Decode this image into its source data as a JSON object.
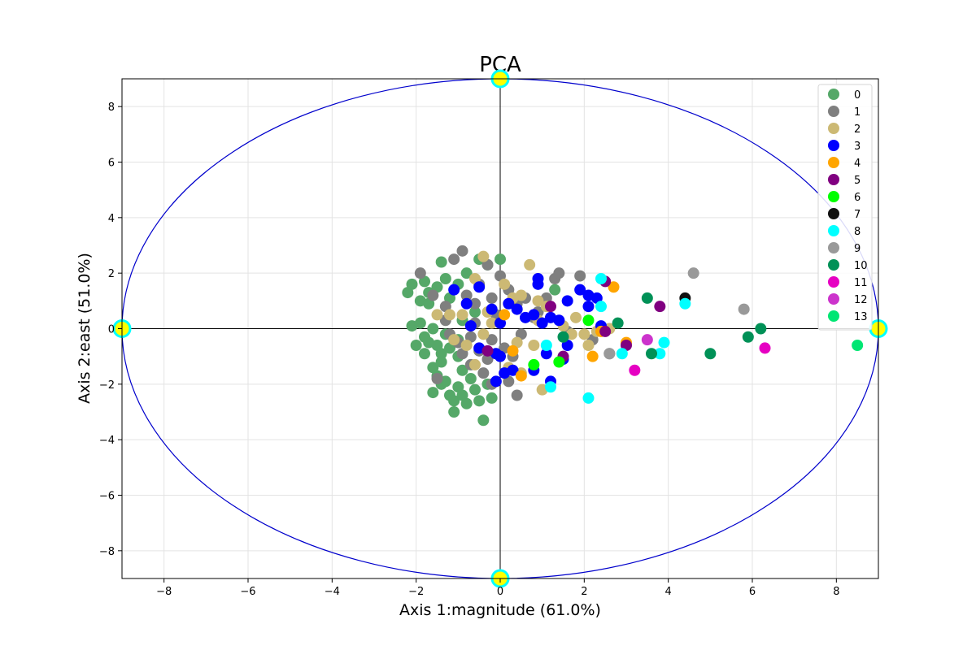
{
  "chart_data": {
    "type": "scatter",
    "title": "PCA",
    "xlabel": "Axis 1:magnitude (61.0%)",
    "ylabel": "Axis 2:east (51.0%)",
    "xlim": [
      -9,
      9
    ],
    "ylim": [
      -9,
      9
    ],
    "x_ticks": [
      -8,
      -6,
      -4,
      -2,
      0,
      2,
      4,
      6,
      8
    ],
    "y_ticks": [
      -8,
      -6,
      -4,
      -2,
      0,
      2,
      4,
      6,
      8
    ],
    "x_tick_labels": [
      "−8",
      "−6",
      "−4",
      "−2",
      "0",
      "2",
      "4",
      "6",
      "8"
    ],
    "y_tick_labels": [
      "−8",
      "−6",
      "−4",
      "−2",
      "0",
      "2",
      "4",
      "6",
      "8"
    ],
    "grid": true,
    "legend_position": "top-right",
    "reference_ellipse": {
      "center": [
        0,
        0
      ],
      "rx": 9,
      "ry": 9,
      "color": "#0000cc"
    },
    "ellipse_markers": {
      "points": [
        [
          0,
          9
        ],
        [
          0,
          -9
        ],
        [
          -9,
          0
        ],
        [
          9,
          0
        ]
      ],
      "fill": "#ffff00",
      "edge": "#00ffff"
    },
    "axis_lines_color": "#000000",
    "series": [
      {
        "name": "0",
        "color": "#55a868",
        "points": [
          [
            -2.2,
            1.3
          ],
          [
            -2.1,
            1.6
          ],
          [
            -1.9,
            1.0
          ],
          [
            -1.8,
            1.7
          ],
          [
            -1.7,
            1.3
          ],
          [
            -1.5,
            1.5
          ],
          [
            -1.4,
            2.4
          ],
          [
            -1.3,
            1.8
          ],
          [
            -1.2,
            1.1
          ],
          [
            -1.0,
            1.6
          ],
          [
            -0.8,
            2.0
          ],
          [
            -2.1,
            0.1
          ],
          [
            -1.9,
            0.2
          ],
          [
            -1.8,
            -0.3
          ],
          [
            -1.7,
            -0.5
          ],
          [
            -1.6,
            0.0
          ],
          [
            -1.5,
            -0.6
          ],
          [
            -1.4,
            -0.9
          ],
          [
            -1.3,
            -0.2
          ],
          [
            -1.2,
            -0.7
          ],
          [
            -2.0,
            -0.6
          ],
          [
            -1.8,
            -0.9
          ],
          [
            -1.6,
            -1.4
          ],
          [
            -1.5,
            -1.7
          ],
          [
            -1.4,
            -1.2
          ],
          [
            -1.3,
            -1.9
          ],
          [
            -1.2,
            -2.4
          ],
          [
            -1.1,
            -2.6
          ],
          [
            -1.0,
            -2.1
          ],
          [
            -0.9,
            -2.4
          ],
          [
            -0.8,
            -2.7
          ],
          [
            -1.1,
            -3.0
          ],
          [
            -0.9,
            -1.5
          ],
          [
            -0.7,
            -1.8
          ],
          [
            -0.6,
            -2.2
          ],
          [
            -0.5,
            -2.6
          ],
          [
            -0.4,
            -3.3
          ],
          [
            -0.3,
            -2.0
          ],
          [
            -1.6,
            -2.3
          ],
          [
            -1.0,
            -1.0
          ],
          [
            -0.9,
            0.3
          ],
          [
            -0.6,
            0.6
          ],
          [
            -0.5,
            2.5
          ],
          [
            -0.3,
            2.3
          ],
          [
            0.0,
            2.5
          ],
          [
            1.3,
            1.4
          ],
          [
            -1.7,
            0.9
          ],
          [
            -1.0,
            -0.4
          ],
          [
            -0.2,
            -2.5
          ],
          [
            -1.4,
            -2.0
          ]
        ]
      },
      {
        "name": "1",
        "color": "#7f7f7f",
        "points": [
          [
            -1.9,
            2.0
          ],
          [
            -1.6,
            1.2
          ],
          [
            -1.3,
            0.8
          ],
          [
            -1.1,
            2.5
          ],
          [
            -0.9,
            2.8
          ],
          [
            -0.8,
            1.2
          ],
          [
            -0.6,
            0.9
          ],
          [
            -0.5,
            1.6
          ],
          [
            -0.3,
            2.3
          ],
          [
            -0.2,
            1.1
          ],
          [
            0.0,
            1.9
          ],
          [
            0.2,
            1.4
          ],
          [
            0.4,
            0.9
          ],
          [
            -1.2,
            -0.2
          ],
          [
            -1.0,
            -0.5
          ],
          [
            -0.7,
            -0.3
          ],
          [
            -0.5,
            -0.8
          ],
          [
            -0.3,
            -1.1
          ],
          [
            -0.2,
            -0.4
          ],
          [
            0.1,
            -0.7
          ],
          [
            0.3,
            -1.0
          ],
          [
            0.5,
            -0.2
          ],
          [
            0.8,
            0.4
          ],
          [
            1.1,
            1.1
          ],
          [
            1.3,
            1.8
          ],
          [
            1.4,
            2.0
          ],
          [
            1.9,
            1.9
          ],
          [
            -0.7,
            -1.3
          ],
          [
            -0.4,
            -1.6
          ],
          [
            -0.2,
            -2.0
          ],
          [
            0.2,
            -1.9
          ],
          [
            0.4,
            -2.4
          ],
          [
            -1.5,
            -1.8
          ],
          [
            -1.3,
            0.3
          ],
          [
            -0.9,
            -0.9
          ],
          [
            -0.6,
            0.2
          ],
          [
            0.6,
            1.1
          ],
          [
            0.9,
            0.6
          ],
          [
            1.6,
            -0.1
          ],
          [
            2.2,
            -0.4
          ],
          [
            2.6,
            -0.9
          ],
          [
            -0.1,
            0.5
          ]
        ]
      },
      {
        "name": "2",
        "color": "#ccb974",
        "points": [
          [
            -1.5,
            0.5
          ],
          [
            -1.2,
            0.5
          ],
          [
            -0.9,
            0.5
          ],
          [
            -0.6,
            1.8
          ],
          [
            -0.4,
            2.6
          ],
          [
            -0.2,
            0.2
          ],
          [
            0.1,
            1.6
          ],
          [
            0.3,
            1.1
          ],
          [
            0.5,
            1.2
          ],
          [
            0.7,
            2.3
          ],
          [
            0.9,
            1.0
          ],
          [
            1.1,
            0.8
          ],
          [
            1.2,
            0.4
          ],
          [
            1.5,
            0.1
          ],
          [
            1.7,
            -0.2
          ],
          [
            1.8,
            0.4
          ],
          [
            2.0,
            -0.2
          ],
          [
            2.1,
            -0.6
          ],
          [
            2.3,
            -0.1
          ],
          [
            2.6,
            0.0
          ],
          [
            -0.8,
            -0.6
          ],
          [
            -0.6,
            -1.3
          ],
          [
            -0.4,
            -0.2
          ],
          [
            -0.1,
            -0.9
          ],
          [
            0.2,
            -1.4
          ],
          [
            0.5,
            -1.6
          ],
          [
            0.8,
            -0.6
          ],
          [
            1.0,
            -2.2
          ],
          [
            -1.1,
            -0.4
          ],
          [
            -0.3,
            0.6
          ],
          [
            0.4,
            -0.5
          ],
          [
            0.9,
            0.3
          ]
        ]
      },
      {
        "name": "3",
        "color": "#0000ff",
        "points": [
          [
            -1.1,
            1.4
          ],
          [
            -0.8,
            0.9
          ],
          [
            -0.5,
            1.5
          ],
          [
            -0.2,
            0.7
          ],
          [
            0.0,
            0.2
          ],
          [
            0.2,
            0.9
          ],
          [
            0.4,
            0.7
          ],
          [
            0.6,
            0.4
          ],
          [
            0.8,
            0.5
          ],
          [
            0.9,
            1.8
          ],
          [
            1.0,
            0.2
          ],
          [
            1.2,
            0.4
          ],
          [
            1.4,
            0.3
          ],
          [
            1.6,
            1.0
          ],
          [
            1.9,
            1.4
          ],
          [
            2.1,
            1.2
          ],
          [
            2.1,
            0.8
          ],
          [
            2.3,
            1.1
          ],
          [
            2.4,
            0.1
          ],
          [
            -0.7,
            0.1
          ],
          [
            -0.5,
            -0.7
          ],
          [
            -0.1,
            -0.9
          ],
          [
            0.0,
            -1.0
          ],
          [
            0.1,
            -1.6
          ],
          [
            0.3,
            -1.5
          ],
          [
            -0.1,
            -1.9
          ],
          [
            0.8,
            -1.5
          ],
          [
            1.1,
            -0.9
          ],
          [
            1.2,
            -1.9
          ],
          [
            1.5,
            -1.1
          ],
          [
            1.6,
            -0.6
          ],
          [
            0.9,
            1.6
          ]
        ]
      },
      {
        "name": "4",
        "color": "#ffa500",
        "points": [
          [
            0.1,
            0.5
          ],
          [
            0.3,
            -0.8
          ],
          [
            0.5,
            -1.7
          ],
          [
            2.2,
            -1.0
          ],
          [
            2.4,
            -0.1
          ],
          [
            2.7,
            1.5
          ],
          [
            3.0,
            -0.5
          ]
        ]
      },
      {
        "name": "5",
        "color": "#800080",
        "points": [
          [
            -0.3,
            -0.8
          ],
          [
            1.2,
            0.8
          ],
          [
            1.5,
            -1.0
          ],
          [
            2.5,
            -0.1
          ],
          [
            2.5,
            1.7
          ],
          [
            3.0,
            -0.6
          ],
          [
            3.8,
            0.8
          ]
        ]
      },
      {
        "name": "6",
        "color": "#00ff00",
        "points": [
          [
            0.8,
            -1.3
          ],
          [
            1.4,
            -1.2
          ],
          [
            2.1,
            0.3
          ]
        ]
      },
      {
        "name": "7",
        "color": "#111111",
        "points": [
          [
            4.4,
            1.1
          ]
        ]
      },
      {
        "name": "8",
        "color": "#00ffff",
        "points": [
          [
            1.1,
            -0.6
          ],
          [
            1.2,
            -2.1
          ],
          [
            2.1,
            -2.5
          ],
          [
            2.4,
            1.8
          ],
          [
            2.4,
            0.8
          ],
          [
            2.9,
            -0.9
          ],
          [
            3.8,
            -0.9
          ],
          [
            3.9,
            -0.5
          ],
          [
            4.4,
            0.9
          ]
        ]
      },
      {
        "name": "9",
        "color": "#999999",
        "points": [
          [
            2.6,
            -0.9
          ],
          [
            4.6,
            2.0
          ],
          [
            5.8,
            0.7
          ]
        ]
      },
      {
        "name": "10",
        "color": "#009157",
        "points": [
          [
            1.5,
            -0.3
          ],
          [
            2.8,
            0.2
          ],
          [
            3.5,
            1.1
          ],
          [
            3.6,
            -0.9
          ],
          [
            5.0,
            -0.9
          ],
          [
            5.9,
            -0.3
          ],
          [
            6.2,
            0.0
          ]
        ]
      },
      {
        "name": "11",
        "color": "#e600c2",
        "points": [
          [
            3.2,
            -1.5
          ],
          [
            6.3,
            -0.7
          ]
        ]
      },
      {
        "name": "12",
        "color": "#cc33cc",
        "points": [
          [
            3.5,
            -0.4
          ]
        ]
      },
      {
        "name": "13",
        "color": "#00e673",
        "points": [
          [
            8.5,
            -0.6
          ]
        ]
      }
    ]
  }
}
